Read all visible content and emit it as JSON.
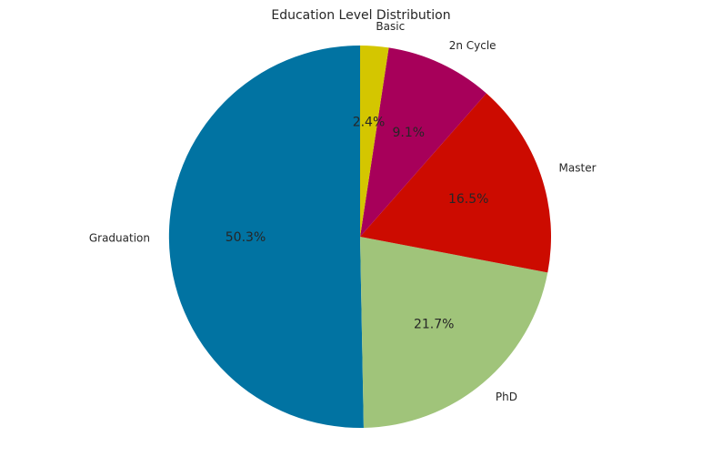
{
  "chart_data": {
    "type": "pie",
    "title": "Education Level Distribution",
    "categories": [
      "Graduation",
      "PhD",
      "Master",
      "2n Cycle",
      "Basic"
    ],
    "values": [
      50.3,
      21.7,
      16.5,
      9.1,
      2.4
    ],
    "value_labels": [
      "50.3%",
      "21.7%",
      "16.5%",
      "9.1%",
      "2.4%"
    ],
    "colors": [
      "#0173a2",
      "#a0c47a",
      "#cc0b00",
      "#a7005a",
      "#d4c600"
    ],
    "start_angle_deg": 90,
    "direction": "counterclockwise",
    "legend": "none"
  }
}
